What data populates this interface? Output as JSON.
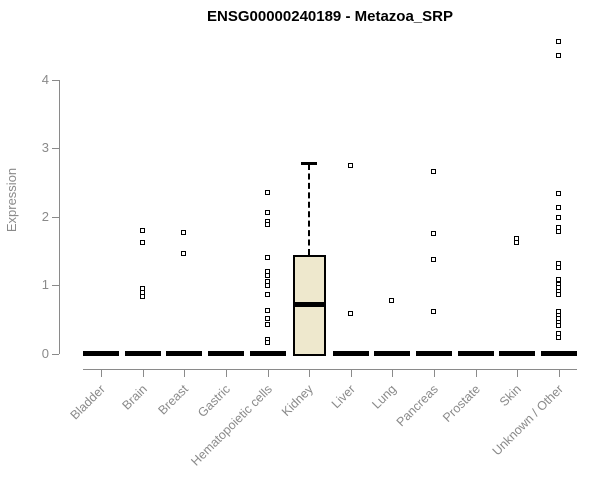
{
  "chart_data": {
    "type": "boxplot",
    "title": "ENSG00000240189 - Metazoa_SRP",
    "ylabel": "Expression",
    "xlabel": "",
    "yticks": [
      0,
      1,
      2,
      3,
      4
    ],
    "ylim": [
      0,
      4.7
    ],
    "grid": false,
    "legend": null,
    "colors": {
      "box_fill": "#eee8cd",
      "box_border": "#000000",
      "axis": "#8a8a8a",
      "title": "#000000"
    },
    "categories": [
      "Bladder",
      "Brain",
      "Breast",
      "Gastric",
      "Hematopoietic cells",
      "Kidney",
      "Liver",
      "Lung",
      "Pancreas",
      "Prostate",
      "Skin",
      "Unknown / Other"
    ],
    "boxes": [
      {
        "category": "Bladder",
        "q1": 0,
        "median": 0,
        "q3": 0,
        "whisker_low": 0,
        "whisker_high": 0,
        "outliers": []
      },
      {
        "category": "Brain",
        "q1": 0,
        "median": 0,
        "q3": 0,
        "whisker_low": 0,
        "whisker_high": 0,
        "outliers": [
          1.79,
          1.62,
          0.94,
          0.88,
          0.82
        ]
      },
      {
        "category": "Breast",
        "q1": 0,
        "median": 0,
        "q3": 0,
        "whisker_low": 0,
        "whisker_high": 0,
        "outliers": [
          1.76,
          1.45
        ]
      },
      {
        "category": "Gastric",
        "q1": 0,
        "median": 0,
        "q3": 0,
        "whisker_low": 0,
        "whisker_high": 0,
        "outliers": []
      },
      {
        "category": "Hematopoietic cells",
        "q1": 0,
        "median": 0,
        "q3": 0,
        "whisker_low": 0,
        "whisker_high": 0,
        "outliers": [
          2.34,
          2.05,
          1.92,
          1.87,
          1.4,
          1.19,
          1.13,
          1.05,
          0.98,
          0.85,
          0.62,
          0.51,
          0.42,
          0.2,
          0.16
        ]
      },
      {
        "category": "Kidney",
        "q1": 0,
        "median": 0.71,
        "q3": 1.44,
        "whisker_low": 0,
        "whisker_high": 2.78,
        "outliers": []
      },
      {
        "category": "Liver",
        "q1": 0,
        "median": 0,
        "q3": 0,
        "whisker_low": 0,
        "whisker_high": 0,
        "outliers": [
          2.74,
          0.58
        ]
      },
      {
        "category": "Lung",
        "q1": 0,
        "median": 0,
        "q3": 0,
        "whisker_low": 0,
        "whisker_high": 0,
        "outliers": [
          0.77
        ]
      },
      {
        "category": "Pancreas",
        "q1": 0,
        "median": 0,
        "q3": 0,
        "whisker_low": 0,
        "whisker_high": 0,
        "outliers": [
          2.65,
          1.74,
          1.36,
          0.61
        ]
      },
      {
        "category": "Prostate",
        "q1": 0,
        "median": 0,
        "q3": 0,
        "whisker_low": 0,
        "whisker_high": 0,
        "outliers": []
      },
      {
        "category": "Skin",
        "q1": 0,
        "median": 0,
        "q3": 0,
        "whisker_low": 0,
        "whisker_high": 0,
        "outliers": [
          1.67,
          1.61
        ]
      },
      {
        "category": "Unknown / Other",
        "q1": 0,
        "median": 0,
        "q3": 0,
        "whisker_low": 0,
        "whisker_high": 0,
        "outliers": [
          4.55,
          4.35,
          2.33,
          2.12,
          1.98,
          1.83,
          1.77,
          1.3,
          1.25,
          1.07,
          1.0,
          0.95,
          0.9,
          0.85,
          0.61,
          0.55,
          0.5,
          0.45,
          0.4,
          0.28,
          0.22
        ]
      }
    ]
  }
}
